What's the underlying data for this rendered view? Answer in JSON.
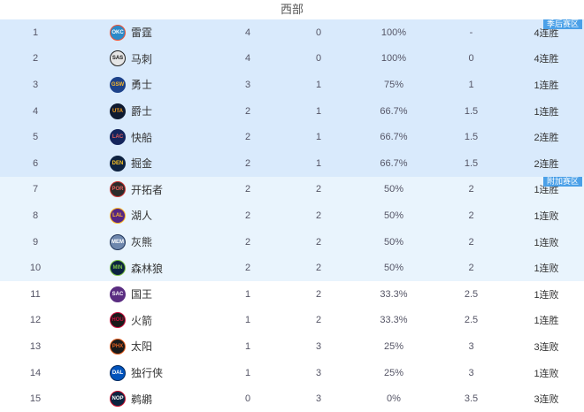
{
  "title": "西部",
  "zones": {
    "playoff_label": "季后赛区",
    "playin_label": "附加赛区"
  },
  "colors": {
    "playoff_row_bg": "#d9eafc",
    "playin_row_bg": "#e9f4fd",
    "normal_row_bg": "#ffffff",
    "badge_bg": "#4aa0e8",
    "badge_text": "#ffffff"
  },
  "standings": [
    {
      "rank": "1",
      "team": "雷霆",
      "abbr": "OKC",
      "wins": "4",
      "losses": "0",
      "pct": "100%",
      "gb": "-",
      "streak": "4连胜",
      "zone": "playoff",
      "badge": "季后赛区",
      "logo_bg": "#2b8ac9",
      "logo_fg": "#ffffff",
      "logo_border": "#f05133"
    },
    {
      "rank": "2",
      "team": "马刺",
      "abbr": "SAS",
      "wins": "4",
      "losses": "0",
      "pct": "100%",
      "gb": "0",
      "streak": "4连胜",
      "zone": "playoff",
      "badge": "",
      "logo_bg": "#e6e6e6",
      "logo_fg": "#111111",
      "logo_border": "#222222"
    },
    {
      "rank": "3",
      "team": "勇士",
      "abbr": "GSW",
      "wins": "3",
      "losses": "1",
      "pct": "75%",
      "gb": "1",
      "streak": "1连胜",
      "zone": "playoff",
      "badge": "",
      "logo_bg": "#1d428a",
      "logo_fg": "#fdb927",
      "logo_border": "#1d428a"
    },
    {
      "rank": "4",
      "team": "爵士",
      "abbr": "UTA",
      "wins": "2",
      "losses": "1",
      "pct": "66.7%",
      "gb": "1.5",
      "streak": "1连胜",
      "zone": "playoff",
      "badge": "",
      "logo_bg": "#0f1a30",
      "logo_fg": "#f9a01b",
      "logo_border": "#0f1a30"
    },
    {
      "rank": "5",
      "team": "快船",
      "abbr": "LAC",
      "wins": "2",
      "losses": "1",
      "pct": "66.7%",
      "gb": "1.5",
      "streak": "2连胜",
      "zone": "playoff",
      "badge": "",
      "logo_bg": "#14255c",
      "logo_fg": "#e05c5c",
      "logo_border": "#14255c"
    },
    {
      "rank": "6",
      "team": "掘金",
      "abbr": "DEN",
      "wins": "2",
      "losses": "1",
      "pct": "66.7%",
      "gb": "1.5",
      "streak": "2连胜",
      "zone": "playoff",
      "badge": "",
      "logo_bg": "#0e2240",
      "logo_fg": "#fec524",
      "logo_border": "#0e2240"
    },
    {
      "rank": "7",
      "team": "开拓者",
      "abbr": "POR",
      "wins": "2",
      "losses": "2",
      "pct": "50%",
      "gb": "2",
      "streak": "1连胜",
      "zone": "playin",
      "badge": "附加赛区",
      "logo_bg": "#2b2b2b",
      "logo_fg": "#e8625f",
      "logo_border": "#cc3333"
    },
    {
      "rank": "8",
      "team": "湖人",
      "abbr": "LAL",
      "wins": "2",
      "losses": "2",
      "pct": "50%",
      "gb": "2",
      "streak": "1连败",
      "zone": "playin",
      "badge": "",
      "logo_bg": "#552583",
      "logo_fg": "#fdb927",
      "logo_border": "#fdb927"
    },
    {
      "rank": "9",
      "team": "灰熊",
      "abbr": "MEM",
      "wins": "2",
      "losses": "2",
      "pct": "50%",
      "gb": "2",
      "streak": "1连败",
      "zone": "playin",
      "badge": "",
      "logo_bg": "#6e87ad",
      "logo_fg": "#ffffff",
      "logo_border": "#23375b"
    },
    {
      "rank": "10",
      "team": "森林狼",
      "abbr": "MIN",
      "wins": "2",
      "losses": "2",
      "pct": "50%",
      "gb": "2",
      "streak": "1连败",
      "zone": "playin",
      "badge": "",
      "logo_bg": "#0c2340",
      "logo_fg": "#7ac143",
      "logo_border": "#7ac143"
    },
    {
      "rank": "11",
      "team": "国王",
      "abbr": "SAC",
      "wins": "1",
      "losses": "2",
      "pct": "33.3%",
      "gb": "2.5",
      "streak": "1连败",
      "zone": "none",
      "badge": "",
      "logo_bg": "#5a2d81",
      "logo_fg": "#ffffff",
      "logo_border": "#5a2d81"
    },
    {
      "rank": "12",
      "team": "火箭",
      "abbr": "HOU",
      "wins": "1",
      "losses": "2",
      "pct": "33.3%",
      "gb": "2.5",
      "streak": "1连胜",
      "zone": "none",
      "badge": "",
      "logo_bg": "#1a1a1a",
      "logo_fg": "#ce1141",
      "logo_border": "#ce1141"
    },
    {
      "rank": "13",
      "team": "太阳",
      "abbr": "PHX",
      "wins": "1",
      "losses": "3",
      "pct": "25%",
      "gb": "3",
      "streak": "3连败",
      "zone": "none",
      "badge": "",
      "logo_bg": "#1a1a1a",
      "logo_fg": "#e56020",
      "logo_border": "#e56020"
    },
    {
      "rank": "14",
      "team": "独行侠",
      "abbr": "DAL",
      "wins": "1",
      "losses": "3",
      "pct": "25%",
      "gb": "3",
      "streak": "1连败",
      "zone": "none",
      "badge": "",
      "logo_bg": "#0053bc",
      "logo_fg": "#ffffff",
      "logo_border": "#00285e"
    },
    {
      "rank": "15",
      "team": "鹈鹕",
      "abbr": "NOP",
      "wins": "0",
      "losses": "3",
      "pct": "0%",
      "gb": "3.5",
      "streak": "3连败",
      "zone": "none",
      "badge": "",
      "logo_bg": "#0c2340",
      "logo_fg": "#ffffff",
      "logo_border": "#c8102e"
    }
  ]
}
